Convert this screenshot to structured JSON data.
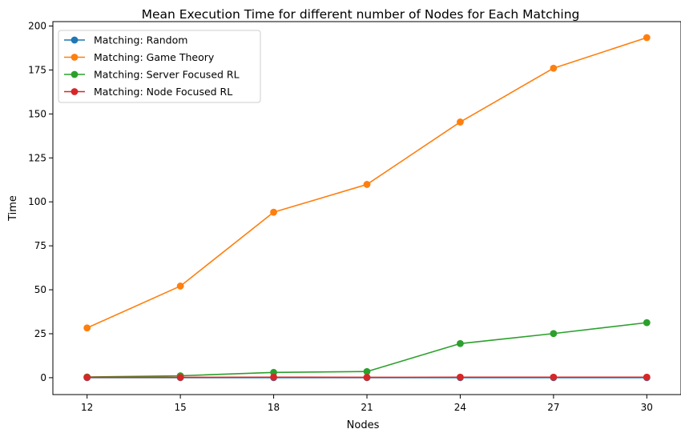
{
  "chart_data": {
    "type": "line",
    "title": "Mean Execution Time for different number of Nodes for Each Matching",
    "xlabel": "Nodes",
    "ylabel": "Time",
    "x": [
      12,
      15,
      18,
      21,
      24,
      27,
      30
    ],
    "x_tick_labels": [
      "12",
      "15",
      "18",
      "21",
      "24",
      "27",
      "30"
    ],
    "ylim": [
      -9.6,
      202.5
    ],
    "y_ticks": [
      0,
      25,
      50,
      75,
      100,
      125,
      150,
      175,
      200
    ],
    "y_tick_labels": [
      "0",
      "25",
      "50",
      "75",
      "100",
      "125",
      "150",
      "175",
      "200"
    ],
    "grid": false,
    "legend_position": "top-left",
    "series": [
      {
        "name": "Matching: Random",
        "color": "#1f77b4",
        "values": [
          0.05,
          0.05,
          0.05,
          0.05,
          0.05,
          0.05,
          0.05
        ]
      },
      {
        "name": "Matching: Game Theory",
        "color": "#ff7f0e",
        "values": [
          28.3,
          52.1,
          94.1,
          109.9,
          145.4,
          176.0,
          193.4
        ]
      },
      {
        "name": "Matching: Server Focused RL",
        "color": "#2ca02c",
        "values": [
          0.4,
          1.1,
          3.0,
          3.5,
          19.4,
          25.1,
          31.3
        ]
      },
      {
        "name": "Matching: Node Focused RL",
        "color": "#d62728",
        "values": [
          0.2,
          0.2,
          0.3,
          0.2,
          0.3,
          0.3,
          0.3
        ]
      }
    ]
  }
}
